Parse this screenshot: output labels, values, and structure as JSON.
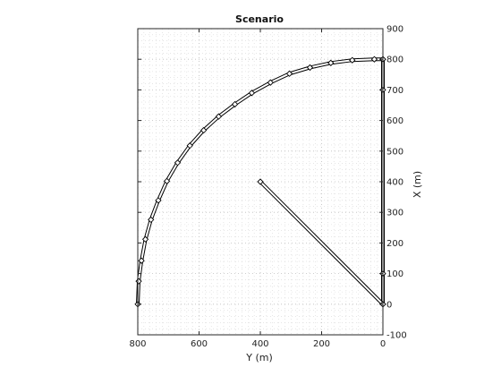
{
  "chart_data": {
    "type": "line",
    "title": "Scenario",
    "xlabel": "Y (m)",
    "ylabel": "X (m)",
    "x_axis_reversed": true,
    "y_axis_location": "right",
    "xlim": [
      0,
      800
    ],
    "ylim": [
      -100,
      900
    ],
    "x_ticks": [
      800,
      600,
      400,
      200,
      0
    ],
    "y_ticks": [
      -100,
      0,
      100,
      200,
      300,
      400,
      500,
      600,
      700,
      800,
      900
    ],
    "grid": "major-and-minor-dotted",
    "colors": {
      "line": "#000000",
      "grid_major": "#bdbdbd",
      "grid_minor": "#d6d6d6",
      "axes": "#262626"
    },
    "series": [
      {
        "style": "double-line-with-diamond-markers",
        "points": [
          [
            800,
            0
          ],
          [
            797,
            75
          ],
          [
            788,
            142
          ],
          [
            775,
            212
          ],
          [
            757,
            276
          ],
          [
            733,
            339
          ],
          [
            705,
            402
          ],
          [
            670,
            462
          ],
          [
            630,
            518
          ],
          [
            585,
            568
          ],
          [
            536,
            613
          ],
          [
            483,
            653
          ],
          [
            428,
            690
          ],
          [
            367,
            724
          ],
          [
            305,
            753
          ],
          [
            238,
            773
          ],
          [
            170,
            788
          ],
          [
            100,
            797
          ],
          [
            28,
            800
          ],
          [
            0,
            800
          ]
        ]
      },
      {
        "style": "double-line-with-diamond-markers",
        "points": [
          [
            0,
            0
          ],
          [
            0,
            100
          ],
          [
            0,
            700
          ],
          [
            0,
            800
          ]
        ]
      },
      {
        "style": "double-line-with-diamond-markers",
        "points": [
          [
            400,
            400
          ],
          [
            0,
            0
          ]
        ]
      }
    ]
  }
}
